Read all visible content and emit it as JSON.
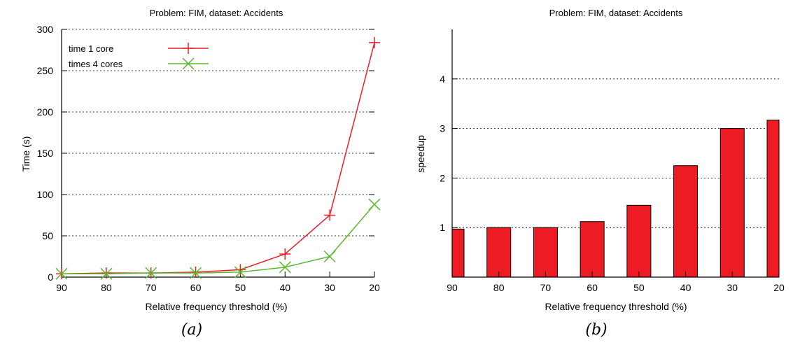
{
  "chart_data": [
    {
      "type": "line",
      "title": "Problem: FIM, dataset: Accidents",
      "xlabel": "Relative frequency threshold (%)",
      "ylabel": "Time (s)",
      "categories": [
        "90",
        "80",
        "70",
        "60",
        "50",
        "40",
        "30",
        "20"
      ],
      "ylim": [
        0,
        300
      ],
      "yticks": [
        "0",
        "50",
        "100",
        "150",
        "200",
        "250",
        "300"
      ],
      "grid": true,
      "legend_position": "top-left",
      "series": [
        {
          "name": "time 1 core",
          "marker": "plus",
          "color": "#e8202a",
          "values": [
            4,
            5,
            5,
            6,
            9,
            28,
            75,
            284
          ]
        },
        {
          "name": "times 4  cores",
          "marker": "x",
          "color": "#5ab82e",
          "values": [
            4,
            4,
            5,
            5,
            6,
            12,
            25,
            88
          ]
        }
      ],
      "caption": "(a)"
    },
    {
      "type": "bar",
      "title": "Problem: FIM, dataset: Accidents",
      "xlabel": "Relative frequency threshold (%)",
      "ylabel": "speedup",
      "categories": [
        "90",
        "80",
        "70",
        "60",
        "50",
        "40",
        "30",
        "20"
      ],
      "values": [
        0.97,
        1.0,
        1.0,
        1.12,
        1.45,
        2.25,
        3.0,
        3.17
      ],
      "ylim": [
        0,
        5
      ],
      "yticks": [
        "1",
        "2",
        "3",
        "4"
      ],
      "grid": true,
      "bar_color": "#ed1c24",
      "caption": "(b)"
    }
  ]
}
